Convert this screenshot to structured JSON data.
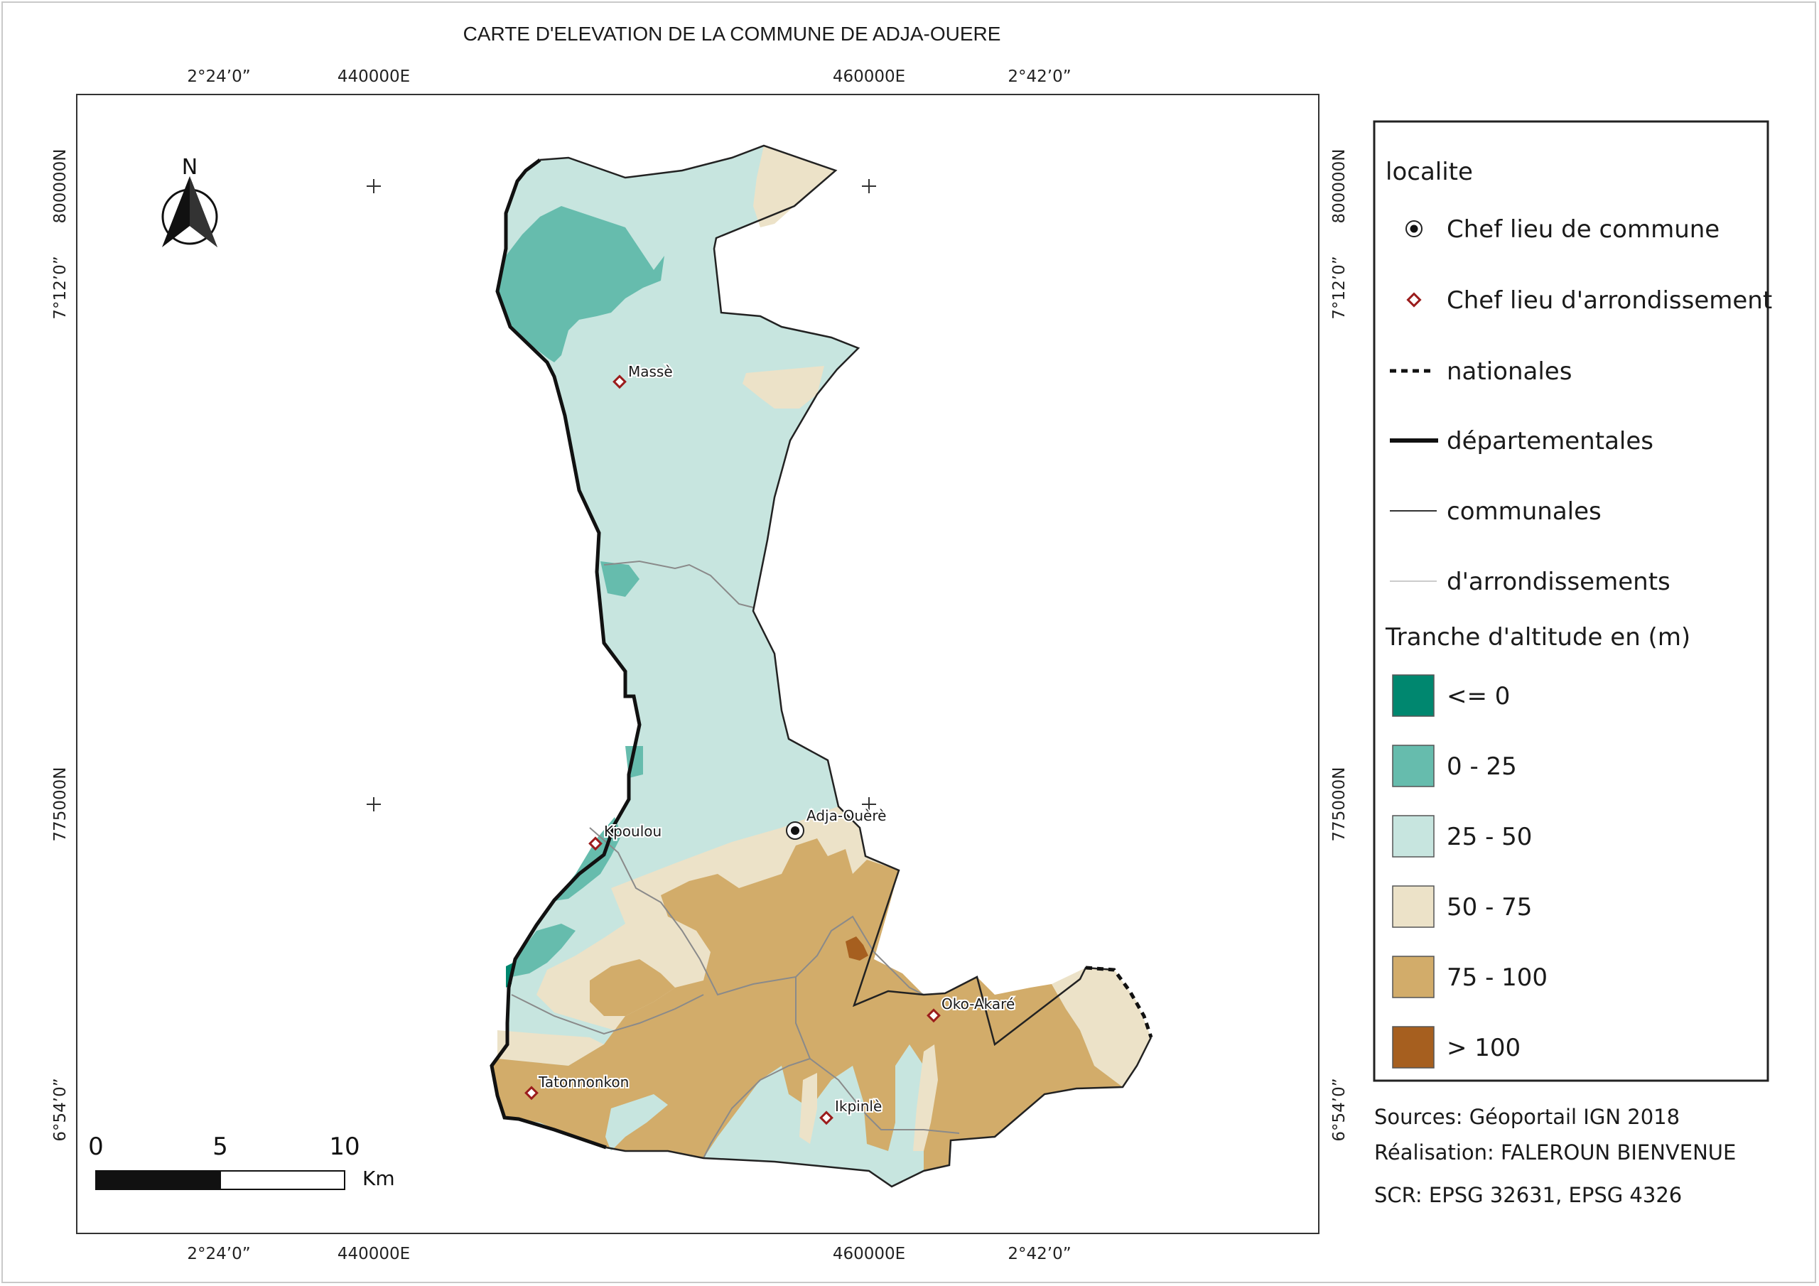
{
  "title": "CARTE D'ELEVATION DE LA COMMUNE DE ADJA-OUERE",
  "grid": {
    "top_labels": [
      "2°24’0”",
      "440000E",
      "460000E",
      "2°42’0”"
    ],
    "bottom_labels": [
      "2°24’0”",
      "440000E",
      "460000E",
      "2°42’0”"
    ],
    "left_labels": [
      "800000N",
      "7°12’0”",
      "775000N",
      "6°54’0”"
    ],
    "right_labels": [
      "800000N",
      "7°12’0”",
      "775000N",
      "6°54’0”"
    ]
  },
  "north_arrow": {
    "label": "N",
    "icon": "north-arrow-icon"
  },
  "scale_bar": {
    "ticks": [
      "0",
      "5",
      "10"
    ],
    "unit": "Km"
  },
  "places": [
    {
      "name": "Massè",
      "type": "arrondissement"
    },
    {
      "name": "Adja-Ouèrè",
      "type": "commune"
    },
    {
      "name": "Kpoulou",
      "type": "arrondissement"
    },
    {
      "name": "Oko-Akaré",
      "type": "arrondissement"
    },
    {
      "name": "Tatonnonkon",
      "type": "arrondissement"
    },
    {
      "name": "Ikpinlè",
      "type": "arrondissement"
    }
  ],
  "legend": {
    "section1_title": "localite",
    "chef_commune": "Chef lieu de commune",
    "chef_arrondissement": "Chef lieu d'arrondissement",
    "nationales": "nationales",
    "departementales": "départementales",
    "communales": "communales",
    "arrondissements": "d'arrondissements",
    "section2_title": "Tranche d'altitude en (m)",
    "classes": [
      {
        "label": "<= 0",
        "color": "#00876f"
      },
      {
        "label": "0 - 25",
        "color": "#66bcad"
      },
      {
        "label": "25 - 50",
        "color": "#c7e5df"
      },
      {
        "label": "50 - 75",
        "color": "#ece2c8"
      },
      {
        "label": "75 - 100",
        "color": "#d2ac6a"
      },
      {
        "label": "> 100",
        "color": "#a65f1f"
      }
    ]
  },
  "credits": {
    "sources": "Sources:  Géoportail IGN 2018",
    "realisation": "Réalisation: FALEROUN BIENVENUE",
    "scr": "SCR: EPSG 32631, EPSG 4326"
  }
}
